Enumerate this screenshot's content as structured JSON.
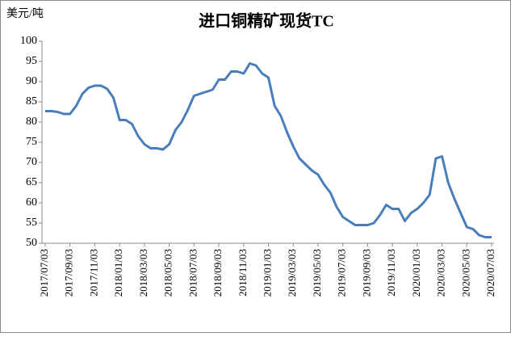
{
  "chart_data": {
    "type": "line",
    "title": "进口铜精矿现货TC",
    "y_label": "美元/吨",
    "categories": [
      "2017/07/03",
      null,
      null,
      null,
      "2017/09/03",
      null,
      null,
      null,
      "2017/11/03",
      null,
      null,
      null,
      "2018/01/03",
      null,
      null,
      null,
      "2018/03/03",
      null,
      null,
      null,
      "2018/05/03",
      null,
      null,
      null,
      "2018/07/03",
      null,
      null,
      null,
      "2018/09/03",
      null,
      null,
      null,
      "2018/11/03",
      null,
      null,
      null,
      "2019/01/03",
      null,
      null,
      null,
      "2019/03/03",
      null,
      null,
      null,
      "2019/05/03",
      null,
      null,
      null,
      "2019/07/03",
      null,
      null,
      null,
      "2019/09/03",
      null,
      null,
      null,
      "2019/11/03",
      null,
      null,
      null,
      "2020/01/03",
      null,
      null,
      null,
      "2020/03/03",
      null,
      null,
      null,
      "2020/05/03",
      null,
      null,
      null,
      "2020/07/03"
    ],
    "series": [
      {
        "name": "进口铜精矿现货TC",
        "color": "#4a7ebb",
        "values": [
          82.7,
          82.7,
          82.5,
          82,
          82,
          84,
          87,
          88.5,
          89,
          89,
          88.2,
          86,
          80.5,
          80.5,
          79.5,
          76.5,
          74.5,
          73.5,
          73.5,
          73.2,
          74.5,
          78,
          80,
          83,
          86.5,
          87,
          87.5,
          88,
          90.5,
          90.5,
          92.5,
          92.5,
          92,
          94.5,
          94,
          92,
          91,
          84,
          81.5,
          77.5,
          74,
          71,
          69.5,
          68,
          67,
          64.5,
          62.5,
          59,
          56.5,
          55.5,
          54.5,
          54.5,
          54.5,
          55,
          57,
          59.5,
          58.5,
          58.5,
          55.5,
          57.5,
          58.5,
          60,
          62,
          71,
          71.5,
          65,
          61,
          57.5,
          54,
          53.5,
          52,
          51.5,
          51.5
        ]
      }
    ],
    "ylim": [
      50,
      100
    ],
    "yticks": [
      50,
      55,
      60,
      65,
      70,
      75,
      80,
      85,
      90,
      95,
      100
    ],
    "grid": false,
    "legend": false
  }
}
